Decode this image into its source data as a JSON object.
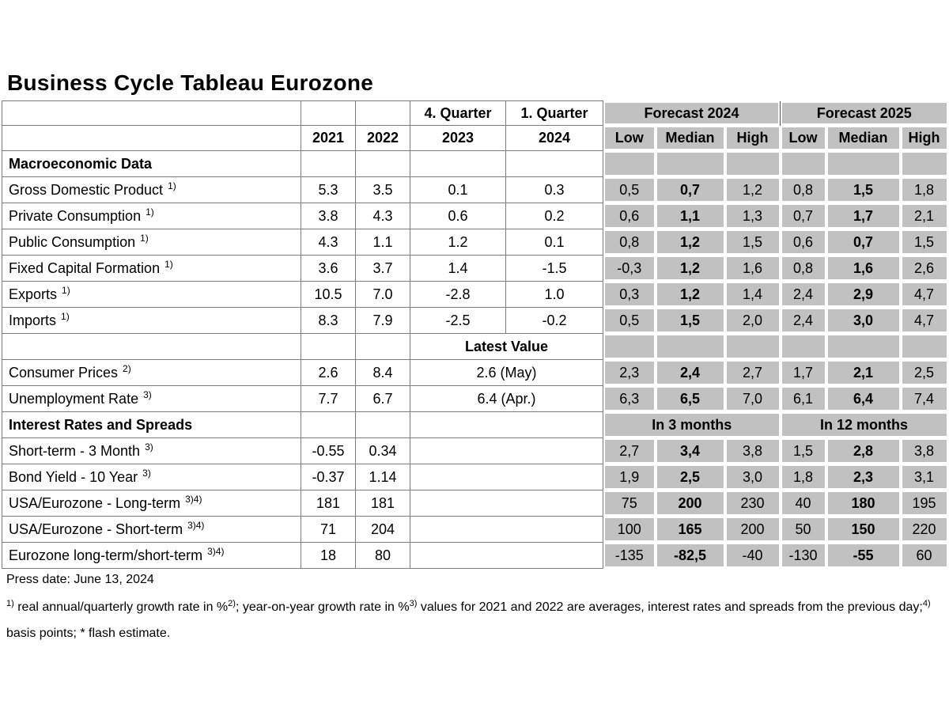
{
  "title": "Business Cycle Tableau Eurozone",
  "colors": {
    "cell_gray": "#c1c1c1",
    "grid_gray": "#7d7d7d",
    "text": "#000000"
  },
  "table": {
    "header": {
      "y2021": "2021",
      "y2022": "2022",
      "q4_label": "4. Quarter",
      "q4_year": "2023",
      "q1_label": "1. Quarter",
      "q1_year": "2024",
      "forecast_2024": "Forecast 2024",
      "forecast_2025": "Forecast 2025",
      "sub": [
        "Low",
        "Median",
        "High",
        "Low",
        "Median",
        "High"
      ]
    },
    "rows": [
      {
        "type": "section",
        "label": "Macroeconomic Data",
        "forecast": [
          "",
          "",
          "",
          "",
          "",
          ""
        ]
      },
      {
        "type": "data4",
        "label": "Gross Domestic Product",
        "sup": "1)",
        "values": [
          "5.3",
          "3.5",
          "0.1",
          "0.3"
        ],
        "forecast": [
          "0,5",
          "0,7",
          "1,2",
          "0,8",
          "1,5",
          "1,8"
        ]
      },
      {
        "type": "data4",
        "label": "Private Consumption",
        "sup": "1)",
        "values": [
          "3.8",
          "4.3",
          "0.6",
          "0.2"
        ],
        "forecast": [
          "0,6",
          "1,1",
          "1,3",
          "0,7",
          "1,7",
          "2,1"
        ]
      },
      {
        "type": "data4",
        "label": "Public Consumption",
        "sup": "1)",
        "values": [
          "4.3",
          "1.1",
          "1.2",
          "0.1"
        ],
        "forecast": [
          "0,8",
          "1,2",
          "1,5",
          "0,6",
          "0,7",
          "1,5"
        ]
      },
      {
        "type": "data4",
        "label": "Fixed Capital Formation",
        "sup": "1)",
        "values": [
          "3.6",
          "3.7",
          "1.4",
          "-1.5"
        ],
        "forecast": [
          "-0,3",
          "1,2",
          "1,6",
          "0,8",
          "1,6",
          "2,6"
        ]
      },
      {
        "type": "data4",
        "label": "Exports",
        "sup": "1)",
        "values": [
          "10.5",
          "7.0",
          "-2.8",
          "1.0"
        ],
        "forecast": [
          "0,3",
          "1,2",
          "1,4",
          "2,4",
          "2,9",
          "4,7"
        ]
      },
      {
        "type": "data4",
        "label": "Imports",
        "sup": "1)",
        "values": [
          "8.3",
          "7.9",
          "-2.5",
          "-0.2"
        ],
        "forecast": [
          "0,5",
          "1,5",
          "2,0",
          "2,4",
          "3,0",
          "4,7"
        ]
      },
      {
        "type": "latest-header",
        "label": "",
        "latest": "Latest Value",
        "forecast": [
          "",
          "",
          "",
          "",
          "",
          ""
        ]
      },
      {
        "type": "data-latest",
        "label": "Consumer Prices",
        "sup": "2)",
        "values": [
          "2.6",
          "8.4"
        ],
        "latest": "2.6 (May)",
        "forecast": [
          "2,3",
          "2,4",
          "2,7",
          "1,7",
          "2,1",
          "2,5"
        ]
      },
      {
        "type": "data-latest",
        "label": "Unemployment Rate",
        "sup": "3)",
        "values": [
          "7.7",
          "6.7"
        ],
        "latest": "6.4 (Apr.)",
        "forecast": [
          "6,3",
          "6,5",
          "7,0",
          "6,1",
          "6,4",
          "7,4"
        ]
      },
      {
        "type": "section-spans",
        "label": "Interest Rates and Spreads",
        "spans": [
          "In 3 months",
          "In 12 months"
        ]
      },
      {
        "type": "data-merged",
        "label": "Short-term - 3 Month",
        "sup": "3)",
        "values": [
          "-0.55",
          "0.34"
        ],
        "forecast": [
          "2,7",
          "3,4",
          "3,8",
          "1,5",
          "2,8",
          "3,8"
        ]
      },
      {
        "type": "data-merged",
        "label": "Bond Yield - 10 Year",
        "sup": "3)",
        "values": [
          "-0.37",
          "1.14"
        ],
        "forecast": [
          "1,9",
          "2,5",
          "3,0",
          "1,8",
          "2,3",
          "3,1"
        ]
      },
      {
        "type": "data-merged",
        "label": "USA/Eurozone - Long-term",
        "sup": "3)4)",
        "values": [
          "181",
          "181"
        ],
        "forecast": [
          "75",
          "200",
          "230",
          "40",
          "180",
          "195"
        ]
      },
      {
        "type": "data-merged",
        "label": "USA/Eurozone - Short-term",
        "sup": "3)4)",
        "values": [
          "71",
          "204"
        ],
        "forecast": [
          "100",
          "165",
          "200",
          "50",
          "150",
          "220"
        ]
      },
      {
        "type": "data-merged",
        "label": "Eurozone long-term/short-term",
        "sup": "3)4)",
        "values": [
          "18",
          "80"
        ],
        "forecast": [
          "-135",
          "-82,5",
          "-40",
          "-130",
          "-55",
          "60"
        ]
      }
    ]
  },
  "footer": {
    "press_date": "Press date: June 13, 2024",
    "footnote_segments": [
      {
        "sup": "1)",
        "text": " real annual/quarterly growth rate in %"
      },
      {
        "sup": "2)",
        "text": "; year-on-year growth rate in %"
      },
      {
        "sup": "3)",
        "text": " values for 2021 and 2022 are averages, interest rates and spreads from the previous day;"
      },
      {
        "sup": "4)",
        "text": " basis points; * flash estimate."
      }
    ]
  }
}
